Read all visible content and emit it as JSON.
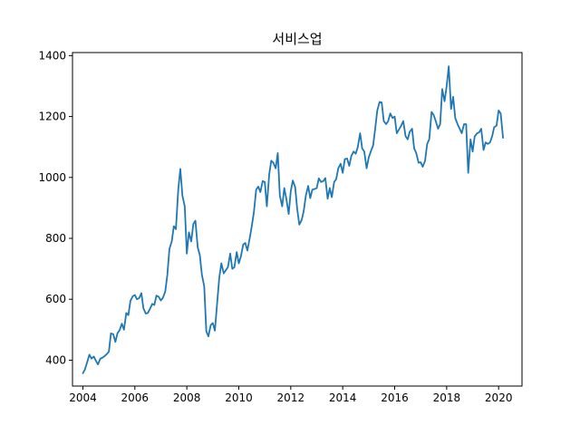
{
  "chart_data": {
    "type": "line",
    "title": "서비스업",
    "xlabel": "",
    "ylabel": "",
    "xlim": [
      2003.6,
      2020.9
    ],
    "ylim": [
      315,
      1410
    ],
    "x_ticks": [
      2004,
      2006,
      2008,
      2010,
      2012,
      2014,
      2016,
      2018,
      2020
    ],
    "x_tick_labels": [
      "2004",
      "2006",
      "2008",
      "2010",
      "2012",
      "2014",
      "2016",
      "2018",
      "2020"
    ],
    "y_ticks": [
      400,
      600,
      800,
      1000,
      1200,
      1400
    ],
    "y_tick_labels": [
      "400",
      "600",
      "800",
      "1000",
      "1200",
      "1400"
    ],
    "grid": false,
    "legend": "none",
    "color": "#1f77b4",
    "series": [
      {
        "x": [
          2004.0,
          2004.08,
          2004.17,
          2004.25,
          2004.33,
          2004.42,
          2004.5,
          2004.58,
          2004.67,
          2004.75,
          2004.83,
          2004.92,
          2005.0,
          2005.08,
          2005.17,
          2005.25,
          2005.33,
          2005.42,
          2005.5,
          2005.58,
          2005.67,
          2005.75,
          2005.83,
          2005.92,
          2006.0,
          2006.08,
          2006.17,
          2006.25,
          2006.33,
          2006.42,
          2006.5,
          2006.58,
          2006.67,
          2006.75,
          2006.83,
          2006.92,
          2007.0,
          2007.08,
          2007.17,
          2007.25,
          2007.33,
          2007.42,
          2007.5,
          2007.58,
          2007.67,
          2007.75,
          2007.83,
          2007.92,
          2008.0,
          2008.08,
          2008.17,
          2008.25,
          2008.33,
          2008.42,
          2008.5,
          2008.58,
          2008.67,
          2008.75,
          2008.83,
          2008.92,
          2009.0,
          2009.08,
          2009.17,
          2009.25,
          2009.33,
          2009.42,
          2009.5,
          2009.58,
          2009.67,
          2009.75,
          2009.83,
          2009.92,
          2010.0,
          2010.08,
          2010.17,
          2010.25,
          2010.33,
          2010.42,
          2010.5,
          2010.58,
          2010.67,
          2010.75,
          2010.83,
          2010.92,
          2011.0,
          2011.08,
          2011.17,
          2011.25,
          2011.33,
          2011.42,
          2011.5,
          2011.58,
          2011.67,
          2011.75,
          2011.83,
          2011.92,
          2012.0,
          2012.08,
          2012.17,
          2012.25,
          2012.33,
          2012.42,
          2012.5,
          2012.58,
          2012.67,
          2012.75,
          2012.83,
          2012.92,
          2013.0,
          2013.08,
          2013.17,
          2013.25,
          2013.33,
          2013.42,
          2013.5,
          2013.58,
          2013.67,
          2013.75,
          2013.83,
          2013.92,
          2014.0,
          2014.08,
          2014.17,
          2014.25,
          2014.33,
          2014.42,
          2014.5,
          2014.58,
          2014.67,
          2014.75,
          2014.83,
          2014.92,
          2015.0,
          2015.08,
          2015.17,
          2015.25,
          2015.33,
          2015.42,
          2015.5,
          2015.58,
          2015.67,
          2015.75,
          2015.83,
          2015.92,
          2016.0,
          2016.08,
          2016.17,
          2016.25,
          2016.33,
          2016.42,
          2016.5,
          2016.58,
          2016.67,
          2016.75,
          2016.83,
          2016.92,
          2017.0,
          2017.08,
          2017.17,
          2017.25,
          2017.33,
          2017.42,
          2017.5,
          2017.58,
          2017.67,
          2017.75,
          2017.83,
          2017.92,
          2018.0,
          2018.08,
          2018.17,
          2018.25,
          2018.33,
          2018.42,
          2018.5,
          2018.58,
          2018.67,
          2018.75,
          2018.83,
          2018.92,
          2019.0,
          2019.08,
          2019.17,
          2019.25,
          2019.33,
          2019.42,
          2019.5,
          2019.58,
          2019.67,
          2019.75,
          2019.83,
          2019.92,
          2020.0,
          2020.08,
          2020.17
        ],
        "y": [
          357,
          370,
          395,
          418,
          405,
          412,
          398,
          386,
          405,
          408,
          413,
          420,
          428,
          488,
          485,
          460,
          488,
          500,
          520,
          500,
          555,
          548,
          595,
          610,
          614,
          600,
          604,
          620,
          570,
          553,
          555,
          568,
          585,
          581,
          612,
          608,
          596,
          605,
          625,
          680,
          765,
          790,
          840,
          830,
          960,
          1028,
          940,
          905,
          750,
          820,
          790,
          847,
          858,
          770,
          745,
          680,
          642,
          495,
          478,
          515,
          522,
          497,
          590,
          672,
          718,
          685,
          695,
          705,
          750,
          700,
          705,
          755,
          718,
          740,
          780,
          785,
          760,
          800,
          840,
          885,
          960,
          970,
          952,
          988,
          985,
          905,
          1010,
          1055,
          1048,
          1030,
          1080,
          940,
          905,
          965,
          930,
          880,
          955,
          990,
          968,
          895,
          845,
          860,
          890,
          940,
          972,
          932,
          960,
          962,
          965,
          997,
          985,
          988,
          998,
          930,
          965,
          935,
          985,
          995,
          1030,
          1045,
          1015,
          1060,
          1062,
          1038,
          1070,
          1085,
          1078,
          1100,
          1145,
          1095,
          1085,
          1030,
          1065,
          1085,
          1105,
          1160,
          1220,
          1248,
          1246,
          1185,
          1175,
          1185,
          1210,
          1195,
          1200,
          1145,
          1158,
          1170,
          1185,
          1135,
          1125,
          1150,
          1160,
          1095,
          1080,
          1048,
          1050,
          1035,
          1055,
          1110,
          1125,
          1215,
          1205,
          1185,
          1160,
          1175,
          1290,
          1250,
          1300,
          1365,
          1225,
          1265,
          1195,
          1175,
          1160,
          1145,
          1175,
          1175,
          1015,
          1125,
          1085,
          1135,
          1145,
          1148,
          1160,
          1090,
          1115,
          1110,
          1115,
          1135,
          1165,
          1170,
          1220,
          1210,
          1130
        ]
      }
    ]
  }
}
